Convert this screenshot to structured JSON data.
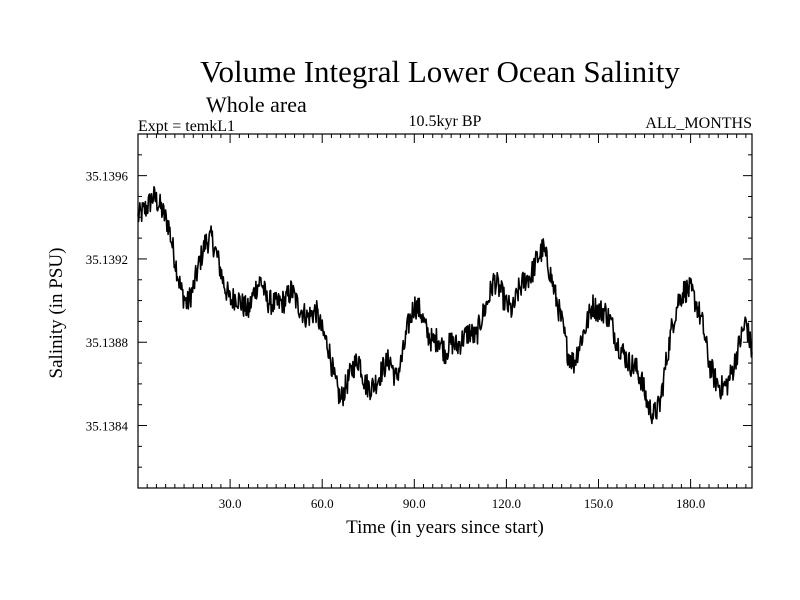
{
  "chart_data": {
    "type": "line",
    "title": "Volume Integral Lower Ocean Salinity",
    "subtitle": "Whole area",
    "expt_label": "Expt = temkL1",
    "period_label": "10.5kyr BP",
    "months_label": "ALL_MONTHS",
    "xlabel": "Time (in years since start)",
    "ylabel": "Salinity (in PSU)",
    "xlim": [
      0,
      200
    ],
    "ylim": [
      35.1381,
      35.1398
    ],
    "xticks": [
      30,
      60,
      90,
      120,
      150,
      180
    ],
    "xtick_labels": [
      "30.0",
      "60.0",
      "90.0",
      "120.0",
      "150.0",
      "180.0"
    ],
    "yticks": [
      35.1384,
      35.1388,
      35.1392,
      35.1396
    ],
    "ytick_labels": [
      "35.1384",
      "35.1388",
      "35.1392",
      "35.1396"
    ],
    "grid": false,
    "series": [
      {
        "name": "salinity",
        "x": [
          0,
          3,
          5,
          7,
          10,
          12,
          14,
          16,
          18,
          20,
          22,
          24,
          26,
          28,
          30,
          32,
          34,
          36,
          38,
          40,
          42,
          45,
          48,
          50,
          52,
          55,
          58,
          60,
          62,
          64,
          66,
          68,
          70,
          72,
          74,
          76,
          78,
          80,
          82,
          84,
          86,
          88,
          90,
          92,
          94,
          96,
          98,
          100,
          102,
          104,
          106,
          108,
          110,
          112,
          114,
          116,
          118,
          120,
          122,
          124,
          126,
          128,
          130,
          132,
          134,
          136,
          138,
          140,
          142,
          144,
          146,
          148,
          150,
          152,
          154,
          156,
          158,
          160,
          162,
          164,
          166,
          168,
          170,
          172,
          174,
          176,
          178,
          180,
          182,
          184,
          186,
          188,
          190,
          192,
          194,
          196,
          198,
          200
        ],
        "values": [
          35.1394,
          35.13945,
          35.1395,
          35.13946,
          35.13936,
          35.1392,
          35.13905,
          35.13898,
          35.13906,
          35.13918,
          35.13928,
          35.1393,
          35.1392,
          35.13908,
          35.139,
          35.13902,
          35.13898,
          35.13895,
          35.13905,
          35.1391,
          35.139,
          35.13898,
          35.139,
          35.13905,
          35.13898,
          35.13892,
          35.13895,
          35.13885,
          35.13878,
          35.13862,
          35.13852,
          35.1386,
          35.13868,
          35.13872,
          35.1386,
          35.13858,
          35.13862,
          35.13868,
          35.13872,
          35.13862,
          35.13872,
          35.13888,
          35.13898,
          35.13895,
          35.13885,
          35.1388,
          35.13882,
          35.13875,
          35.1388,
          35.13878,
          35.13882,
          35.13885,
          35.13882,
          35.13892,
          35.139,
          35.1391,
          35.13905,
          35.13898,
          35.13895,
          35.13905,
          35.1391,
          35.13912,
          35.1392,
          35.13925,
          35.13915,
          35.13902,
          35.1389,
          35.13875,
          35.1387,
          35.1388,
          35.13888,
          35.13898,
          35.13895,
          35.13895,
          35.1389,
          35.1388,
          35.13875,
          35.1387,
          35.13868,
          35.13862,
          35.1385,
          35.13845,
          35.1385,
          35.1387,
          35.13888,
          35.139,
          35.13905,
          35.13905,
          35.13898,
          35.13888,
          35.1387,
          35.13862,
          35.13858,
          35.1386,
          35.13868,
          35.1388,
          35.1389,
          35.13875
        ]
      }
    ]
  }
}
